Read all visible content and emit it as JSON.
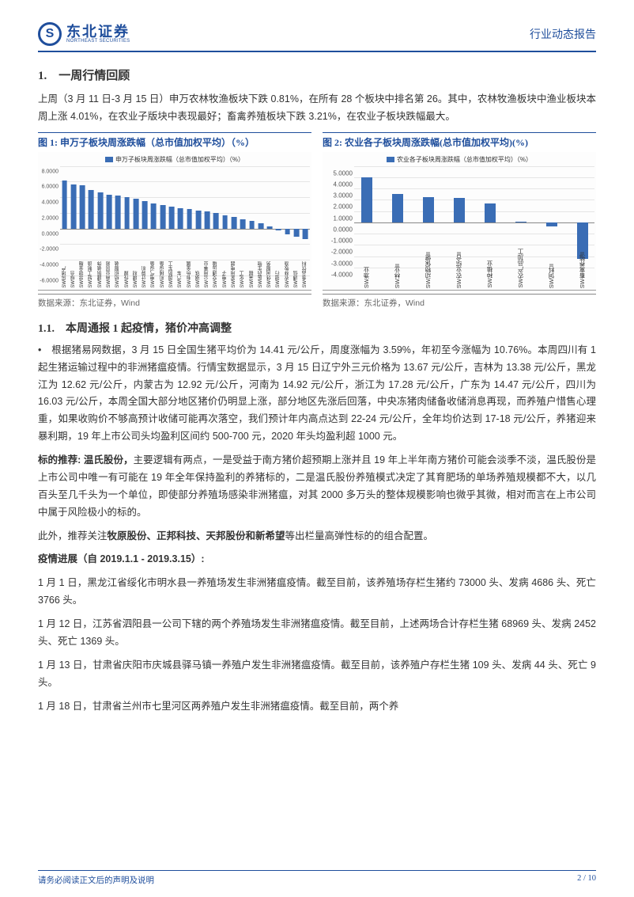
{
  "header": {
    "logo_cn": "东北证券",
    "logo_en": "NORTHEAST SECURITIES",
    "right": "行业动态报告"
  },
  "section1": {
    "title": "1.　一周行情回顾",
    "intro": "上周（3 月 11 日-3 月 15 日）申万农林牧渔板块下跌 0.81%，在所有 28 个板块中排名第 26。其中，农林牧渔板块中渔业板块本周上涨 4.01%，在农业子版块中表现最好；畜禽养殖板块下跌 3.21%，在农业子板块跌幅最大。"
  },
  "chart1": {
    "title": "图 1: 申万子板块周涨跌幅（总市值加权平均）（%）",
    "legend": "申万子板块周涨跌幅（总市值加权平均）（%）",
    "source": "数据来源：东北证券，Wind",
    "ymin": -6,
    "ymax": 8,
    "ytick_step": 2,
    "bars": [
      {
        "label": "SW房地产",
        "v": 6.1
      },
      {
        "label": "SW综合",
        "v": 5.6
      },
      {
        "label": "SW非银金融",
        "v": 5.5
      },
      {
        "label": "SW轻工制造",
        "v": 4.9
      },
      {
        "label": "SW建筑装饰",
        "v": 4.6
      },
      {
        "label": "SW商业贸易",
        "v": 4.3
      },
      {
        "label": "SW纺织服装",
        "v": 4.2
      },
      {
        "label": "SW传媒",
        "v": 4.0
      },
      {
        "label": "SW建材",
        "v": 3.8
      },
      {
        "label": "SW计算机",
        "v": 3.5
      },
      {
        "label": "SW电气设备",
        "v": 3.2
      },
      {
        "label": "SW机械设备",
        "v": 3.0
      },
      {
        "label": "SW国防军工",
        "v": 2.8
      },
      {
        "label": "SW汽车",
        "v": 2.6
      },
      {
        "label": "SW有色金属",
        "v": 2.5
      },
      {
        "label": "SW钢铁",
        "v": 2.3
      },
      {
        "label": "SW公用事业",
        "v": 2.2
      },
      {
        "label": "SW交通运输",
        "v": 2.0
      },
      {
        "label": "SW电子",
        "v": 1.7
      },
      {
        "label": "SW家用电器",
        "v": 1.5
      },
      {
        "label": "SW化工",
        "v": 1.2
      },
      {
        "label": "SW采掘",
        "v": 1.0
      },
      {
        "label": "SW医药生物",
        "v": 0.7
      },
      {
        "label": "SW休闲服务",
        "v": 0.3
      },
      {
        "label": "SW银行",
        "v": -0.2
      },
      {
        "label": "SW农林牧渔",
        "v": -0.8
      },
      {
        "label": "SW通信",
        "v": -1.1
      },
      {
        "label": "SW食品饮料",
        "v": -1.4
      }
    ]
  },
  "chart2": {
    "title": "图 2: 农业各子板块周涨跌幅(总市值加权平均)(%)",
    "legend": "农业各子板块周涨跌幅（总市值加权平均）（%）",
    "source": "数据来源：东北证券，Wind",
    "ymin": -4,
    "ymax": 5,
    "ytick_step": 1,
    "bars": [
      {
        "label": "SW渔业",
        "v": 4.01
      },
      {
        "label": "SW林业II",
        "v": 2.55
      },
      {
        "label": "SW动物保健II",
        "v": 2.25
      },
      {
        "label": "SW农业综合II",
        "v": 2.15
      },
      {
        "label": "SW种植业",
        "v": 1.65
      },
      {
        "label": "SW农产品加工",
        "v": 0.05
      },
      {
        "label": "SW饲料II",
        "v": -0.35
      },
      {
        "label": "SW畜禽养殖II",
        "v": -3.21
      }
    ]
  },
  "sub11": {
    "title": "1.1.　本周通报 1 起疫情，猪价冲高调整",
    "p1": "•　根据猪易网数据，3 月 15 日全国生猪平均价为 14.41 元/公斤，周度涨幅为 3.59%，年初至今涨幅为 10.76%。本周四川有 1 起生猪运输过程中的非洲猪瘟疫情。行情宝数据显示，3 月 15 日辽宁外三元价格为 13.67 元/公斤，吉林为 13.38 元/公斤，黑龙江为 12.62 元/公斤，内蒙古为 12.92 元/公斤，河南为 14.92 元/公斤，浙江为 17.28 元/公斤，广东为 14.47 元/公斤，四川为 16.03 元/公斤，本周全国大部分地区猪价仍明显上涨，部分地区先涨后回落，中央冻猪肉储备收储消息再现，而养殖户惜售心理重，如果收购价不够高预计收储可能再次落空，我们预计年内高点达到 22-24 元/公斤，全年均价达到 17-18 元/公斤，养猪迎来暴利期，19 年上市公司头均盈利区间约 500-700 元，2020 年头均盈利超 1000 元。",
    "p2a": "标的推荐: 温氏股份，",
    "p2b": "主要逻辑有两点，一是受益于南方猪价超预期上涨并且 19 年上半年南方猪价可能会淡季不淡，温氏股份是上市公司中唯一有可能在 19 年全年保持盈利的养猪标的，二是温氏股份养殖模式决定了其育肥场的单场养殖规模都不大，以几百头至几千头为一个单位，即使部分养殖场感染非洲猪瘟，对其 2000 多万头的整体规模影响也微乎其微，相对而言在上市公司中属于风险极小的标的。",
    "p3a": "此外，推荐关注",
    "p3b": "牧原股份、正邦科技、天邦股份和新希望",
    "p3c": "等出栏量高弹性标的的组合配置。",
    "progress_title": "疫情进展（自 2019.1.1 - 2019.3.15）:",
    "e1": "1 月 1 日，黑龙江省绥化市明水县一养殖场发生非洲猪瘟疫情。截至目前，该养殖场存栏生猪约 73000 头、发病 4686 头、死亡 3766 头。",
    "e2": "1 月 12 日，江苏省泗阳县一公司下辖的两个养殖场发生非洲猪瘟疫情。截至目前，上述两场合计存栏生猪 68969 头、发病 2452 头、死亡 1369 头。",
    "e3": "1 月 13 日，甘肃省庆阳市庆城县驿马镇一养殖户发生非洲猪瘟疫情。截至目前，该养殖户存栏生猪 109 头、发病 44 头、死亡 9 头。",
    "e4": "1 月 18 日，甘肃省兰州市七里河区两养殖户发生非洲猪瘟疫情。截至目前，两个养"
  },
  "footer": {
    "left": "请务必阅读正文后的声明及说明",
    "right": "2 / 10"
  },
  "colors": {
    "brand": "#1f4e9c",
    "bar": "#3a6db5",
    "grid": "#e5e5e5"
  }
}
